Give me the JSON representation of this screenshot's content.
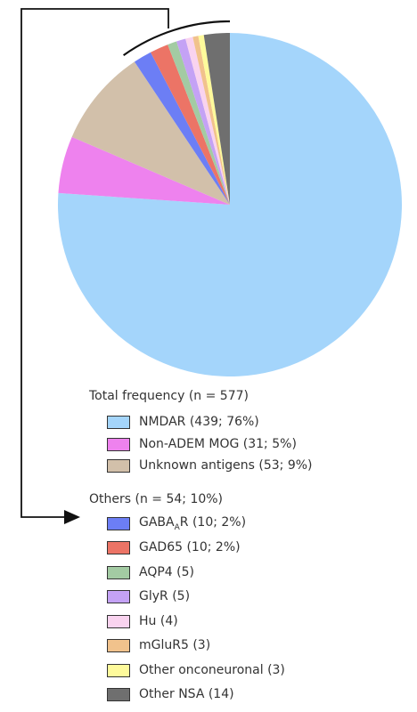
{
  "chart_data": {
    "type": "pie",
    "total": 577,
    "slices": [
      {
        "label": "NMDAR",
        "value": 439,
        "group": "main",
        "color": "#a4d5fb"
      },
      {
        "label": "Non-ADEM MOG",
        "value": 31,
        "group": "main",
        "color": "#ee82ee"
      },
      {
        "label": "Unknown antigens",
        "value": 53,
        "group": "main",
        "color": "#d2c0aa"
      },
      {
        "label": "GABAAR",
        "value": 10,
        "group": "others",
        "color": "#6c7ef5"
      },
      {
        "label": "GAD65",
        "value": 10,
        "group": "others",
        "color": "#ec7466"
      },
      {
        "label": "AQP4",
        "value": 5,
        "group": "others",
        "color": "#a3cba3"
      },
      {
        "label": "GlyR",
        "value": 5,
        "group": "others",
        "color": "#c4a2f5"
      },
      {
        "label": "Hu",
        "value": 4,
        "group": "others",
        "color": "#f9d3ef"
      },
      {
        "label": "mGluR5",
        "value": 3,
        "group": "others",
        "color": "#f1c28c"
      },
      {
        "label": "Other onconeuronal",
        "value": 3,
        "group": "others",
        "color": "#fefa9b"
      },
      {
        "label": "Other NSA",
        "value": 14,
        "group": "others",
        "color": "#6f6f6f"
      }
    ],
    "legend": {
      "total_title": "Total frequency (n = 577)",
      "total_items": [
        {
          "text": "NMDAR (439; 76%)",
          "color": "#a4d5fb"
        },
        {
          "text": "Non-ADEM MOG (31; 5%)",
          "color": "#ee82ee"
        },
        {
          "text": "Unknown antigens (53; 9%)",
          "color": "#d2c0aa"
        }
      ],
      "others_title": "Others (n = 54; 10%)",
      "others_items": [
        {
          "pre": "GABA",
          "sub": "A",
          "post": "R (10; 2%)",
          "color": "#6c7ef5"
        },
        {
          "text": "GAD65 (10; 2%)",
          "color": "#ec7466"
        },
        {
          "text": "AQP4 (5)",
          "color": "#a3cba3"
        },
        {
          "text": "GlyR (5)",
          "color": "#c4a2f5"
        },
        {
          "text": "Hu (4)",
          "color": "#f9d3ef"
        },
        {
          "text": "mGluR5 (3)",
          "color": "#f1c28c"
        },
        {
          "text": "Other onconeuronal (3)",
          "color": "#fefa9b"
        },
        {
          "text": "Other NSA (14)",
          "color": "#6f6f6f"
        }
      ]
    }
  }
}
